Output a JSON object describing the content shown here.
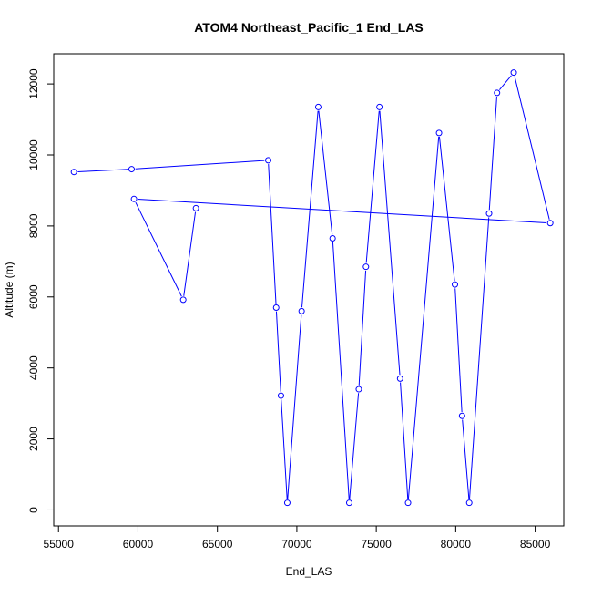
{
  "chart_data": {
    "type": "line",
    "title": "ATOM4 Northeast_Pacific_1 End_LAS",
    "xlabel": "End_LAS",
    "ylabel": "Altitude (m)",
    "xlim": [
      54700,
      86800
    ],
    "ylim": [
      -450,
      12850
    ],
    "x_ticks": [
      55000,
      60000,
      65000,
      70000,
      75000,
      80000,
      85000
    ],
    "y_ticks": [
      0,
      2000,
      4000,
      6000,
      8000,
      10000,
      12000
    ],
    "series": [
      {
        "color": "#0000ff",
        "marker": "open-circle",
        "x": [
          55970,
          59600,
          68200,
          68700,
          69000,
          69400,
          70300,
          71350,
          72250,
          73300,
          73900,
          74350,
          75200,
          76500,
          77000,
          78950,
          79950,
          80400,
          80850,
          82100,
          82600,
          83650,
          85950,
          59750,
          62850,
          63650
        ],
        "y": [
          9520,
          9600,
          9850,
          5700,
          3220,
          200,
          5600,
          11350,
          7650,
          200,
          3400,
          6850,
          11350,
          3700,
          200,
          10620,
          6350,
          2650,
          200,
          8350,
          11750,
          12320,
          8080,
          8760,
          5920,
          8500
        ]
      }
    ]
  }
}
